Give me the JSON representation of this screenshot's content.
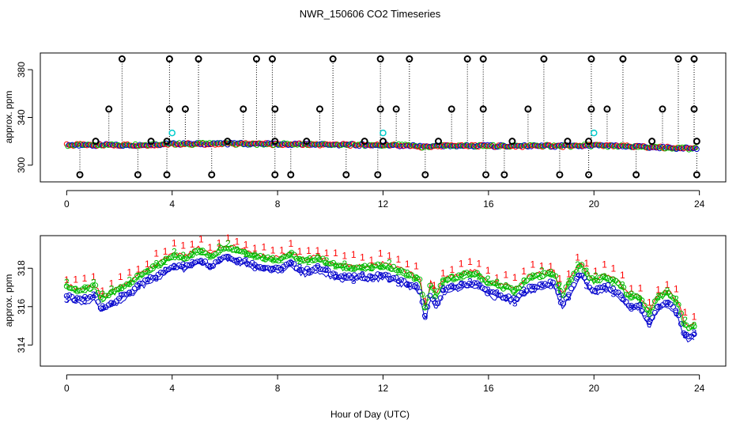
{
  "title": "NWR_150606  CO2 Timeseries",
  "xlabel": "Hour of Day (UTC)",
  "colors": {
    "series1": "#ff0000",
    "series2": "#00bb00",
    "series3": "#0000cc",
    "outlier": "#000000",
    "highlight": "#00cccc"
  },
  "chart_data": [
    {
      "type": "scatter",
      "ylabel": "approx. ppm",
      "xlim": [
        -1.0,
        25.0
      ],
      "ylim": [
        286,
        394
      ],
      "xticks": [
        0,
        4,
        8,
        12,
        16,
        20,
        24
      ],
      "yticks": [
        300,
        340,
        380
      ],
      "baseline": [
        [
          0,
          316.8
        ],
        [
          1,
          316.9
        ],
        [
          2,
          316.8
        ],
        [
          3,
          317.0
        ],
        [
          4,
          317.8
        ],
        [
          5,
          317.8
        ],
        [
          6,
          318.0
        ],
        [
          7,
          317.8
        ],
        [
          8,
          317.6
        ],
        [
          9,
          317.4
        ],
        [
          10,
          317.2
        ],
        [
          11,
          317.0
        ],
        [
          12,
          316.8
        ],
        [
          13,
          316.5
        ],
        [
          13.6,
          315.0
        ],
        [
          14,
          315.8
        ],
        [
          15,
          316.3
        ],
        [
          16,
          316.1
        ],
        [
          17,
          316.0
        ],
        [
          18,
          316.2
        ],
        [
          19,
          316.0
        ],
        [
          20,
          316.6
        ],
        [
          21,
          315.8
        ],
        [
          22,
          315.2
        ],
        [
          23,
          314.6
        ],
        [
          23.8,
          313.8
        ]
      ],
      "outliers_high": [
        2.1,
        3.9,
        5.0,
        7.2,
        7.8,
        10.1,
        11.9,
        13.0,
        15.2,
        15.8,
        18.1,
        19.9,
        21.1,
        23.2,
        23.8
      ],
      "outliers_mid": [
        1.6,
        3.9,
        4.5,
        6.7,
        7.9,
        9.6,
        11.9,
        12.5,
        14.6,
        15.8,
        17.5,
        19.9,
        20.5,
        22.6,
        23.8
      ],
      "outliers_low": [
        0.5,
        2.7,
        3.8,
        5.5,
        7.9,
        8.5,
        10.6,
        11.8,
        13.6,
        15.9,
        16.6,
        18.7,
        19.8,
        21.6,
        23.9
      ],
      "small_peaks": [
        1.1,
        3.2,
        3.8,
        6.1,
        7.9,
        9.1,
        11.3,
        12.0,
        14.1,
        16.9,
        19.0,
        19.8,
        22.2,
        23.9
      ],
      "highlights": [
        [
          4.0,
          327
        ],
        [
          12.0,
          327
        ],
        [
          20.0,
          327
        ]
      ]
    },
    {
      "type": "scatter",
      "ylabel": "approx. ppm",
      "xlim": [
        -1.0,
        25.0
      ],
      "ylim": [
        312.9,
        319.7
      ],
      "xticks": [
        0,
        4,
        8,
        12,
        16,
        20,
        24
      ],
      "yticks": [
        314,
        316,
        318
      ],
      "series": [
        {
          "name": "1",
          "marker": "1",
          "offset": 0.45
        },
        {
          "name": "2",
          "marker": "2",
          "offset": 0.25
        },
        {
          "name": "3",
          "marker": "3",
          "offset": -0.35
        }
      ],
      "base_curve": [
        [
          0.0,
          316.7
        ],
        [
          0.4,
          316.5
        ],
        [
          0.8,
          316.6
        ],
        [
          1.1,
          316.7
        ],
        [
          1.3,
          316.0
        ],
        [
          1.5,
          316.2
        ],
        [
          2.0,
          316.6
        ],
        [
          2.5,
          317.0
        ],
        [
          3.0,
          317.5
        ],
        [
          3.5,
          317.8
        ],
        [
          4.0,
          318.3
        ],
        [
          4.5,
          318.2
        ],
        [
          5.0,
          318.6
        ],
        [
          5.5,
          318.3
        ],
        [
          6.0,
          318.8
        ],
        [
          6.5,
          318.6
        ],
        [
          7.0,
          318.4
        ],
        [
          7.5,
          318.2
        ],
        [
          8.0,
          318.1
        ],
        [
          8.5,
          318.4
        ],
        [
          9.0,
          318.0
        ],
        [
          9.5,
          318.2
        ],
        [
          10.0,
          317.9
        ],
        [
          10.5,
          317.7
        ],
        [
          11.0,
          317.7
        ],
        [
          11.5,
          317.7
        ],
        [
          12.0,
          317.8
        ],
        [
          12.5,
          317.6
        ],
        [
          13.0,
          317.3
        ],
        [
          13.4,
          317.0
        ],
        [
          13.6,
          315.5
        ],
        [
          13.8,
          316.8
        ],
        [
          14.0,
          316.2
        ],
        [
          14.3,
          317.0
        ],
        [
          15.0,
          317.3
        ],
        [
          15.5,
          317.4
        ],
        [
          16.0,
          316.9
        ],
        [
          16.5,
          316.7
        ],
        [
          17.0,
          316.5
        ],
        [
          17.5,
          317.1
        ],
        [
          18.0,
          317.3
        ],
        [
          18.5,
          317.4
        ],
        [
          18.8,
          316.2
        ],
        [
          19.1,
          317.0
        ],
        [
          19.5,
          317.9
        ],
        [
          19.8,
          317.2
        ],
        [
          20.0,
          317.0
        ],
        [
          20.5,
          317.2
        ],
        [
          21.0,
          316.8
        ],
        [
          21.3,
          316.2
        ],
        [
          21.7,
          316.2
        ],
        [
          22.1,
          315.3
        ],
        [
          22.4,
          316.1
        ],
        [
          22.8,
          316.4
        ],
        [
          23.2,
          315.8
        ],
        [
          23.4,
          314.8
        ],
        [
          23.6,
          314.5
        ],
        [
          23.8,
          314.7
        ]
      ]
    }
  ]
}
